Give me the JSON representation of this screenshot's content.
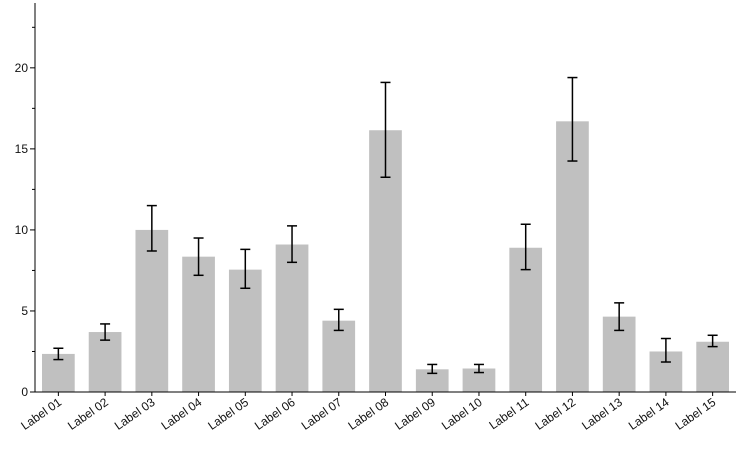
{
  "chart_data": {
    "type": "bar",
    "title": "",
    "xlabel": "",
    "ylabel": "",
    "ylim": [
      0,
      24
    ],
    "yticks": [
      0,
      5,
      10,
      15,
      20
    ],
    "yticks_labels": [
      "0",
      "5",
      "10",
      "15",
      "20"
    ],
    "minor_tick_step": 2.5,
    "grid": false,
    "legend": "none",
    "bar_color": "#c0c0c0",
    "errorbar_color": "#000000",
    "categories": [
      "Label 01",
      "Label 02",
      "Label 03",
      "Label 04",
      "Label 05",
      "Label 06",
      "Label 07",
      "Label 08",
      "Label 09",
      "Label 10",
      "Label 11",
      "Label 12",
      "Label 13",
      "Label 14",
      "Label 15"
    ],
    "values": [
      2.35,
      3.7,
      10.0,
      8.35,
      7.55,
      9.1,
      4.4,
      16.15,
      1.4,
      1.45,
      8.9,
      16.7,
      4.65,
      2.5,
      3.1
    ],
    "error_low": [
      2.0,
      3.2,
      8.7,
      7.2,
      6.4,
      8.0,
      3.8,
      13.25,
      1.15,
      1.2,
      7.55,
      14.25,
      3.8,
      1.85,
      2.8
    ],
    "error_high": [
      2.7,
      4.2,
      11.5,
      9.5,
      8.8,
      10.25,
      5.1,
      19.1,
      1.7,
      1.7,
      10.35,
      19.4,
      5.5,
      3.3,
      3.5
    ]
  }
}
